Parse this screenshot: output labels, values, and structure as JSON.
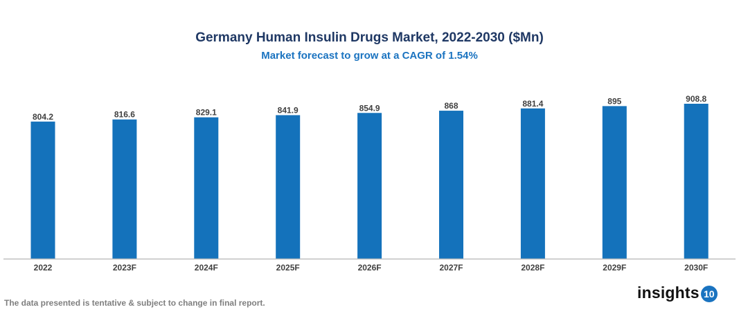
{
  "chart_data": {
    "type": "bar",
    "title": "Germany Human Insulin Drugs Market, 2022-2030 ($Mn)",
    "subtitle": "Market forecast to grow at a CAGR of 1.54%",
    "categories": [
      "2022",
      "2023F",
      "2024F",
      "2025F",
      "2026F",
      "2027F",
      "2028F",
      "2029F",
      "2030F"
    ],
    "values": [
      804.2,
      816.6,
      829.1,
      841.9,
      854.9,
      868,
      881.4,
      895,
      908.8
    ],
    "value_labels": [
      "804.2",
      "816.6",
      "829.1",
      "841.9",
      "854.9",
      "868",
      "881.4",
      "895",
      "908.8"
    ],
    "xlabel": "",
    "ylabel": "",
    "ylim": [
      0,
      908.8
    ],
    "grid": false,
    "y_axis_visible": false,
    "bar_color": "#1472bb"
  },
  "footer": {
    "note": "The data presented is tentative & subject to change in final report.",
    "logo_text": "insights",
    "logo_badge": "10"
  },
  "colors": {
    "title": "#1f3864",
    "subtitle": "#1a73c0",
    "axis": "#bfbfbf",
    "label": "#404040"
  }
}
